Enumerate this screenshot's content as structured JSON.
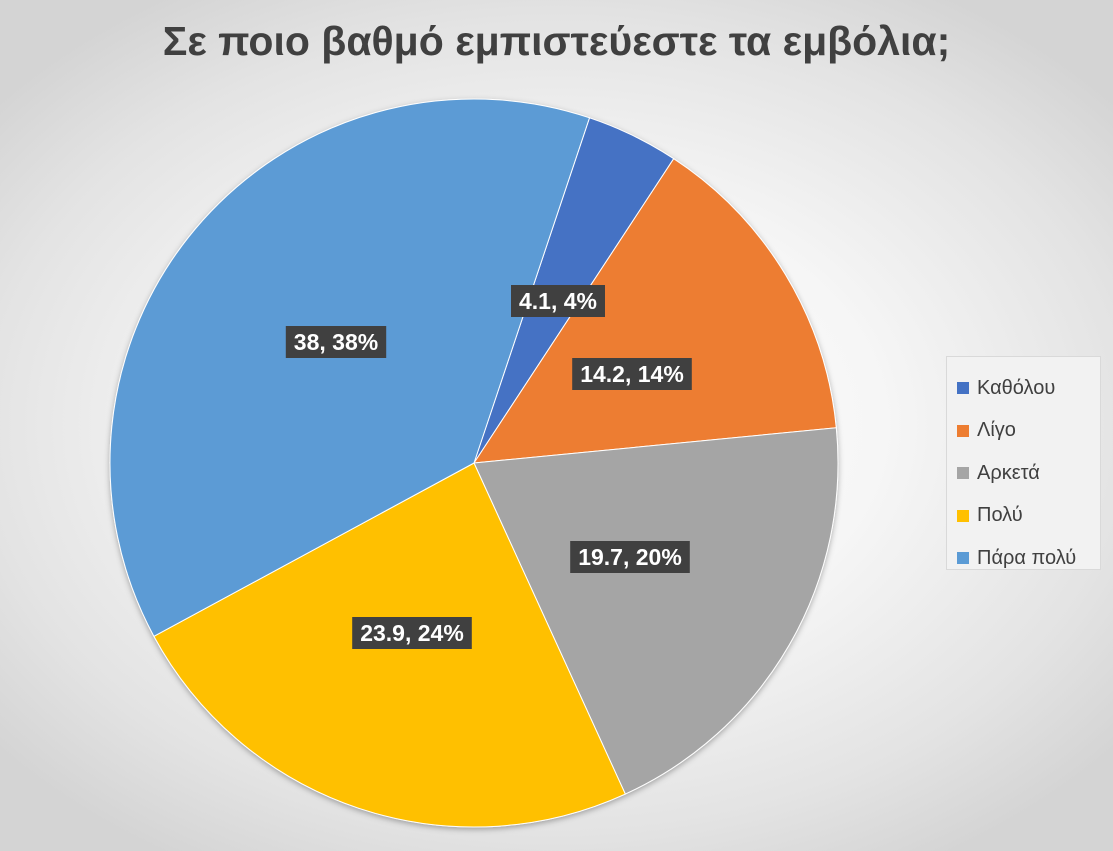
{
  "chart_data": {
    "type": "pie",
    "title": "Σε ποιο βαθμό εμπιστεύεστε τα εμβόλια;",
    "categories": [
      "Καθόλου",
      "Λίγο",
      "Αρκετά",
      "Πολύ",
      "Πάρα πολύ"
    ],
    "values": [
      4.1,
      14.2,
      19.7,
      23.9,
      38
    ],
    "data_labels": [
      "4.1, 4%",
      "14.2, 14%",
      "19.7, 20%",
      "23.9, 24%",
      "38, 38%"
    ],
    "colors": [
      "#4472c4",
      "#ed7d31",
      "#a5a5a5",
      "#ffc000",
      "#5b9bd5"
    ],
    "legend_position": "right"
  }
}
